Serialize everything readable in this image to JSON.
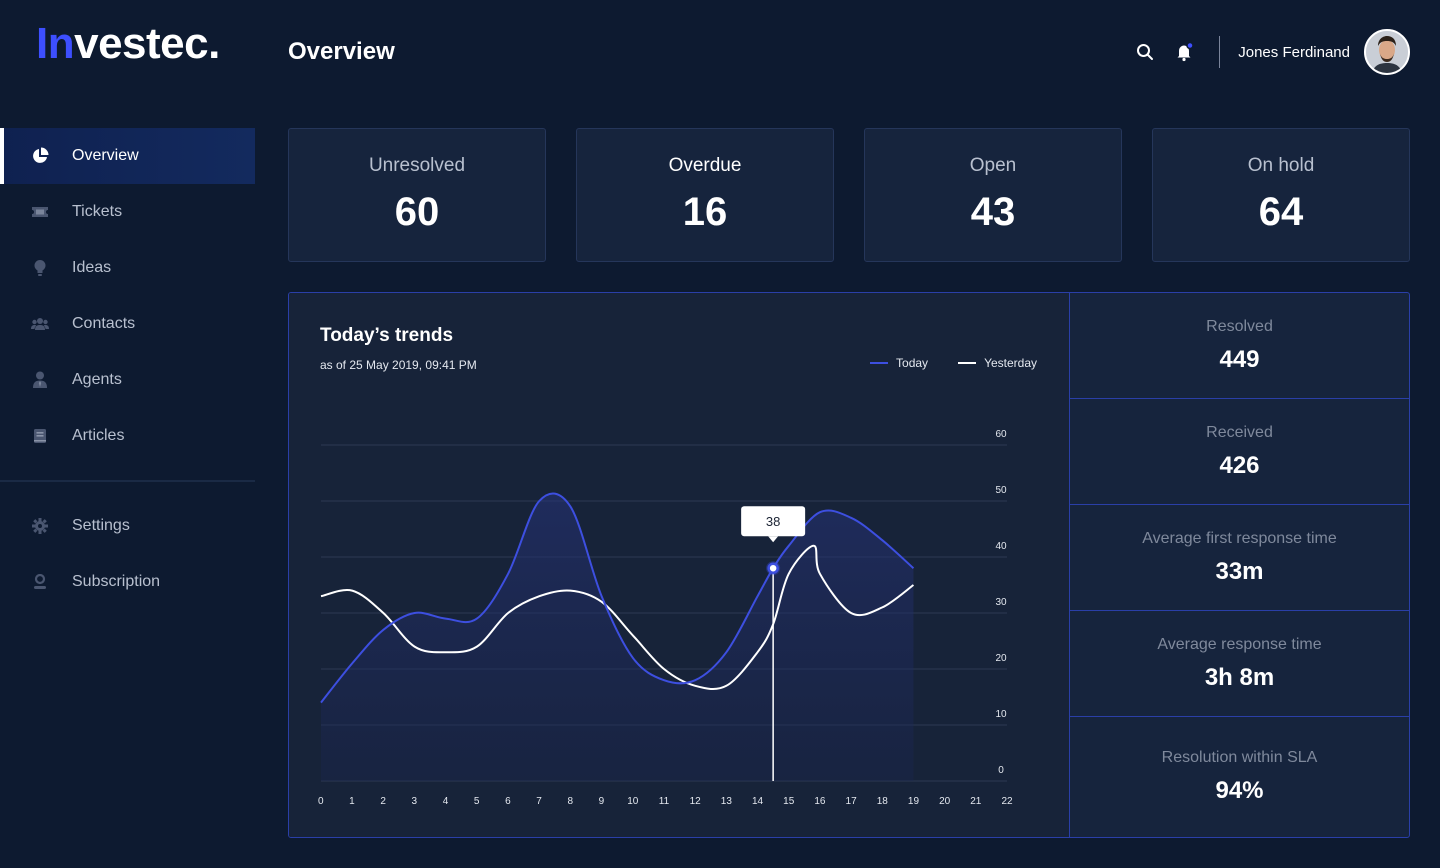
{
  "brand": {
    "logo_first": "In",
    "logo_rest": "vestec.",
    "accent_color": "#3d4fff"
  },
  "header": {
    "title": "Overview",
    "user_name": "Jones Ferdinand",
    "icons": [
      "search-icon",
      "bell-icon"
    ]
  },
  "sidebar": {
    "items": [
      {
        "label": "Overview",
        "icon": "pie-chart-icon",
        "active": true
      },
      {
        "label": "Tickets",
        "icon": "ticket-icon"
      },
      {
        "label": "Ideas",
        "icon": "lightbulb-icon"
      },
      {
        "label": "Contacts",
        "icon": "users-icon"
      },
      {
        "label": "Agents",
        "icon": "agent-icon"
      },
      {
        "label": "Articles",
        "icon": "book-icon"
      }
    ],
    "bottom_items": [
      {
        "label": "Settings",
        "icon": "gear-icon"
      },
      {
        "label": "Subscription",
        "icon": "user-circle-icon"
      }
    ]
  },
  "stats": [
    {
      "label": "Unresolved",
      "value": "60"
    },
    {
      "label": "Overdue",
      "value": "16"
    },
    {
      "label": "Open",
      "value": "43"
    },
    {
      "label": "On hold",
      "value": "64"
    }
  ],
  "trends": {
    "title": "Today’s trends",
    "subtitle": "as of 25 May 2019, 09:41 PM",
    "tooltip_value": "38"
  },
  "metrics": [
    {
      "label": "Resolved",
      "value": "449"
    },
    {
      "label": "Received",
      "value": "426"
    },
    {
      "label": "Average first response time",
      "value": "33m"
    },
    {
      "label": "Average response time",
      "value": "3h 8m"
    },
    {
      "label": "Resolution within SLA",
      "value": "94%"
    }
  ],
  "chart_data": {
    "type": "line",
    "title": "Today’s trends",
    "subtitle": "as of 25 May 2019, 09:41 PM",
    "x_ticks": [
      0,
      1,
      2,
      3,
      4,
      5,
      6,
      7,
      8,
      9,
      10,
      11,
      12,
      13,
      14,
      15,
      16,
      17,
      18,
      19,
      20,
      21,
      22
    ],
    "y_ticks": [
      0,
      10,
      20,
      30,
      40,
      50,
      60
    ],
    "ylim": [
      0,
      60
    ],
    "xlim": [
      0,
      22
    ],
    "y_axis_position": "right",
    "grid": true,
    "legend_position": "top-right",
    "series": [
      {
        "name": "Today",
        "color": "#3d4fe0",
        "x": [
          0,
          1,
          2,
          3,
          4,
          5,
          6,
          7,
          8,
          9,
          10,
          11,
          12,
          13,
          14,
          14.5,
          15,
          16,
          17,
          18,
          19
        ],
        "y": [
          14,
          21,
          27,
          30,
          29,
          29,
          37,
          50,
          49,
          33,
          22,
          18,
          18,
          23,
          33,
          38,
          42,
          48,
          47,
          43,
          38
        ]
      },
      {
        "name": "Yesterday",
        "color": "#ffffff",
        "x": [
          0,
          1,
          2,
          3,
          4,
          5,
          6,
          7,
          8,
          9,
          10,
          11,
          12,
          13,
          14,
          14.5,
          15,
          15.8,
          16,
          17,
          18,
          19
        ],
        "y": [
          33,
          34,
          30,
          24,
          23,
          24,
          30,
          33,
          34,
          32,
          26,
          20,
          17,
          17,
          23,
          28,
          37,
          42,
          37,
          30,
          31,
          35
        ]
      }
    ],
    "highlight": {
      "series": "Today",
      "x": 14.5,
      "y": 38,
      "label": "38"
    }
  }
}
